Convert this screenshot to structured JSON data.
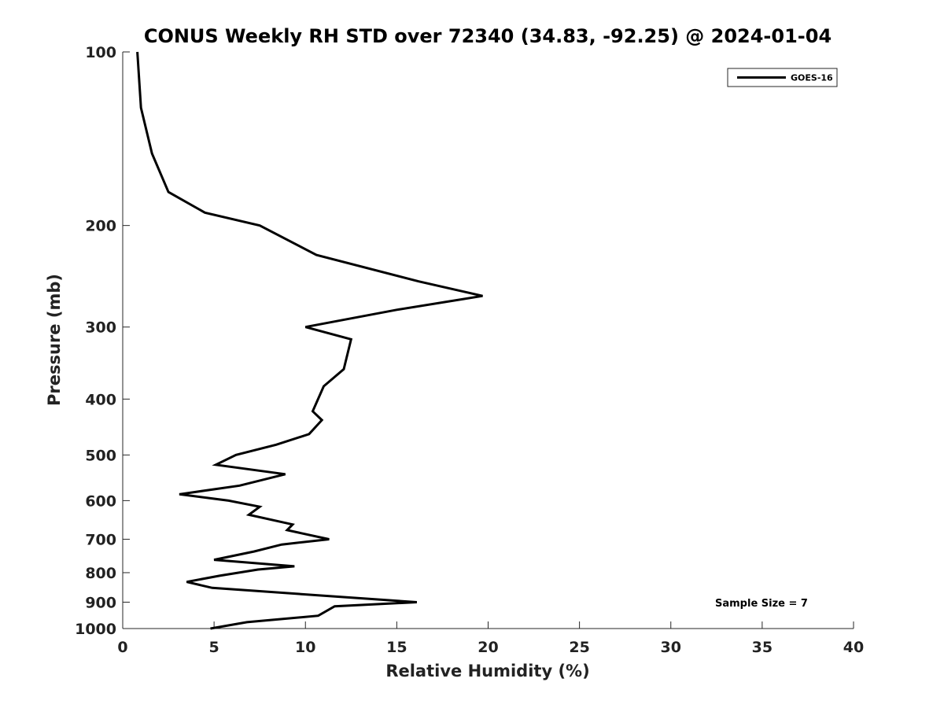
{
  "chart_data": {
    "type": "line",
    "title": "CONUS Weekly RH STD over 72340 (34.83, -92.25) @ 2024-01-04",
    "xlabel": "Relative Humidity (%)",
    "ylabel": "Pressure (mb)",
    "xlim": [
      0,
      40
    ],
    "ylim": [
      100,
      1000
    ],
    "y_scale": "log",
    "y_reversed": true,
    "xticks": [
      "0",
      "5",
      "10",
      "15",
      "20",
      "25",
      "30",
      "35",
      "40"
    ],
    "xtick_values": [
      0,
      5,
      10,
      15,
      20,
      25,
      30,
      35,
      40
    ],
    "yticks": [
      "100",
      "200",
      "300",
      "400",
      "500",
      "600",
      "700",
      "800",
      "900",
      "1000"
    ],
    "ytick_values": [
      100,
      200,
      300,
      400,
      500,
      600,
      700,
      800,
      900,
      1000
    ],
    "grid": false,
    "legend_position": "top-right",
    "series": [
      {
        "name": "GOES-16",
        "color": "#000000",
        "points": [
          [
            0.8,
            100
          ],
          [
            1.0,
            125
          ],
          [
            1.6,
            150
          ],
          [
            2.5,
            175
          ],
          [
            4.5,
            190
          ],
          [
            7.5,
            200
          ],
          [
            10.6,
            225
          ],
          [
            16.2,
            250
          ],
          [
            19.7,
            265
          ],
          [
            15.0,
            280
          ],
          [
            10.0,
            300
          ],
          [
            12.5,
            315
          ],
          [
            12.1,
            355
          ],
          [
            11.0,
            380
          ],
          [
            10.4,
            420
          ],
          [
            10.9,
            435
          ],
          [
            10.2,
            460
          ],
          [
            8.4,
            480
          ],
          [
            6.2,
            500
          ],
          [
            5.1,
            520
          ],
          [
            8.9,
            540
          ],
          [
            6.4,
            565
          ],
          [
            3.1,
            585
          ],
          [
            5.8,
            600
          ],
          [
            7.5,
            615
          ],
          [
            6.9,
            635
          ],
          [
            9.3,
            660
          ],
          [
            9.0,
            675
          ],
          [
            11.3,
            700
          ],
          [
            8.7,
            715
          ],
          [
            7.2,
            735
          ],
          [
            5.0,
            760
          ],
          [
            9.4,
            780
          ],
          [
            7.4,
            790
          ],
          [
            5.3,
            810
          ],
          [
            3.5,
            830
          ],
          [
            4.9,
            850
          ],
          [
            16.1,
            900
          ],
          [
            11.6,
            915
          ],
          [
            10.7,
            950
          ],
          [
            6.8,
            975
          ],
          [
            4.8,
            1000
          ]
        ]
      }
    ],
    "annotations": [
      {
        "text": "Sample Size = 7",
        "x": 35.3,
        "y": 900
      }
    ]
  }
}
